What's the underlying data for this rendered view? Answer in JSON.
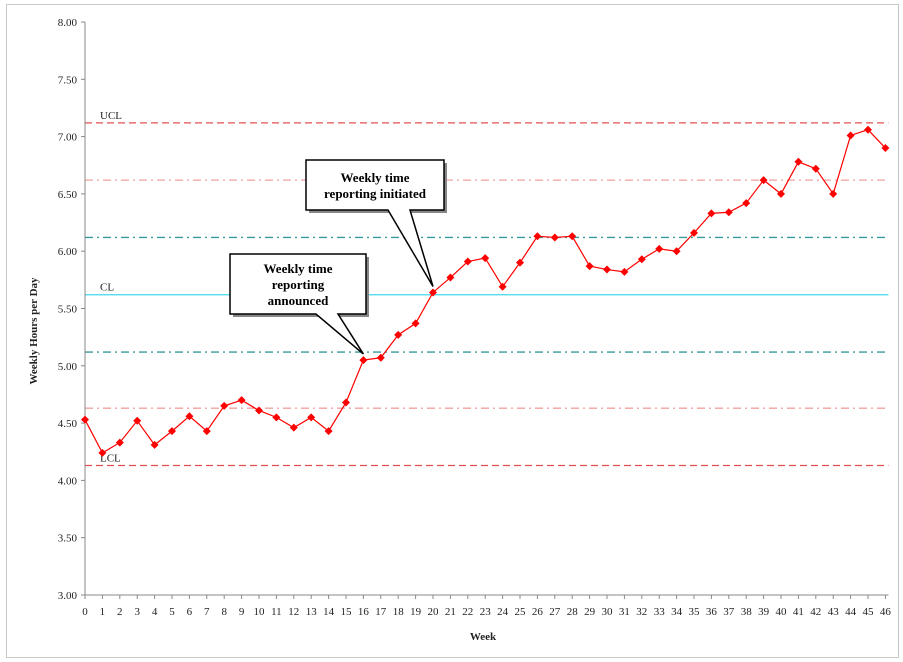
{
  "chart_data": {
    "type": "line",
    "title": "",
    "xlabel": "Week",
    "ylabel": "Weekly Hours per Day",
    "ylim": [
      3.0,
      8.0
    ],
    "yticks": [
      "3.00",
      "3.50",
      "4.00",
      "4.50",
      "5.00",
      "5.50",
      "6.00",
      "6.50",
      "7.00",
      "7.50",
      "8.00"
    ],
    "x": [
      0,
      1,
      2,
      3,
      4,
      5,
      6,
      7,
      8,
      9,
      10,
      11,
      12,
      13,
      14,
      15,
      16,
      17,
      18,
      19,
      20,
      21,
      22,
      23,
      24,
      25,
      26,
      27,
      28,
      29,
      30,
      31,
      32,
      33,
      34,
      35,
      36,
      37,
      38,
      39,
      40,
      41,
      42,
      43,
      44,
      45,
      46
    ],
    "xticks": [
      "0",
      "1",
      "2",
      "3",
      "4",
      "5",
      "6",
      "7",
      "8",
      "9",
      "10",
      "11",
      "12",
      "13",
      "14",
      "15",
      "16",
      "17",
      "18",
      "19",
      "20",
      "21",
      "22",
      "23",
      "24",
      "25",
      "26",
      "27",
      "28",
      "29",
      "30",
      "31",
      "32",
      "33",
      "34",
      "35",
      "36",
      "37",
      "38",
      "39",
      "40",
      "41",
      "42",
      "43",
      "44",
      "45",
      "46"
    ],
    "series": [
      {
        "name": "",
        "color": "#ff0000",
        "values": [
          4.53,
          4.24,
          4.33,
          4.52,
          4.31,
          4.43,
          4.56,
          4.43,
          4.65,
          4.7,
          4.61,
          4.55,
          4.46,
          4.55,
          4.43,
          4.68,
          5.05,
          5.07,
          5.27,
          5.37,
          5.64,
          5.77,
          5.91,
          5.94,
          5.69,
          5.9,
          6.13,
          6.12,
          6.13,
          5.87,
          5.84,
          5.82,
          5.93,
          6.02,
          6.0,
          6.16,
          6.33,
          6.34,
          6.42,
          6.62,
          6.5,
          6.78,
          6.72,
          6.5,
          7.01,
          7.06,
          6.9
        ]
      }
    ],
    "reference_lines": [
      {
        "label": "UCL",
        "value": 7.12,
        "color": "#e05050",
        "style": "dashed"
      },
      {
        "label": "",
        "value": 6.62,
        "color": "#f0a0a0",
        "style": "dashdot"
      },
      {
        "label": "",
        "value": 6.12,
        "color": "#3a9a9a",
        "style": "dashdot"
      },
      {
        "label": "CL",
        "value": 5.62,
        "color": "#40d8e8",
        "style": "solid"
      },
      {
        "label": "",
        "value": 5.12,
        "color": "#3a9a9a",
        "style": "dashdot"
      },
      {
        "label": "",
        "value": 4.63,
        "color": "#f0a0a0",
        "style": "dashdot"
      },
      {
        "label": "LCL",
        "value": 4.13,
        "color": "#e05050",
        "style": "dashed"
      }
    ],
    "annotations": [
      {
        "lines": [
          "Weekly time",
          "reporting",
          "announced"
        ],
        "x": 16,
        "y": 5.05
      },
      {
        "lines": [
          "Weekly time",
          "reporting initiated"
        ],
        "x": 20,
        "y": 5.64
      }
    ],
    "grid": false,
    "legend": "none"
  }
}
